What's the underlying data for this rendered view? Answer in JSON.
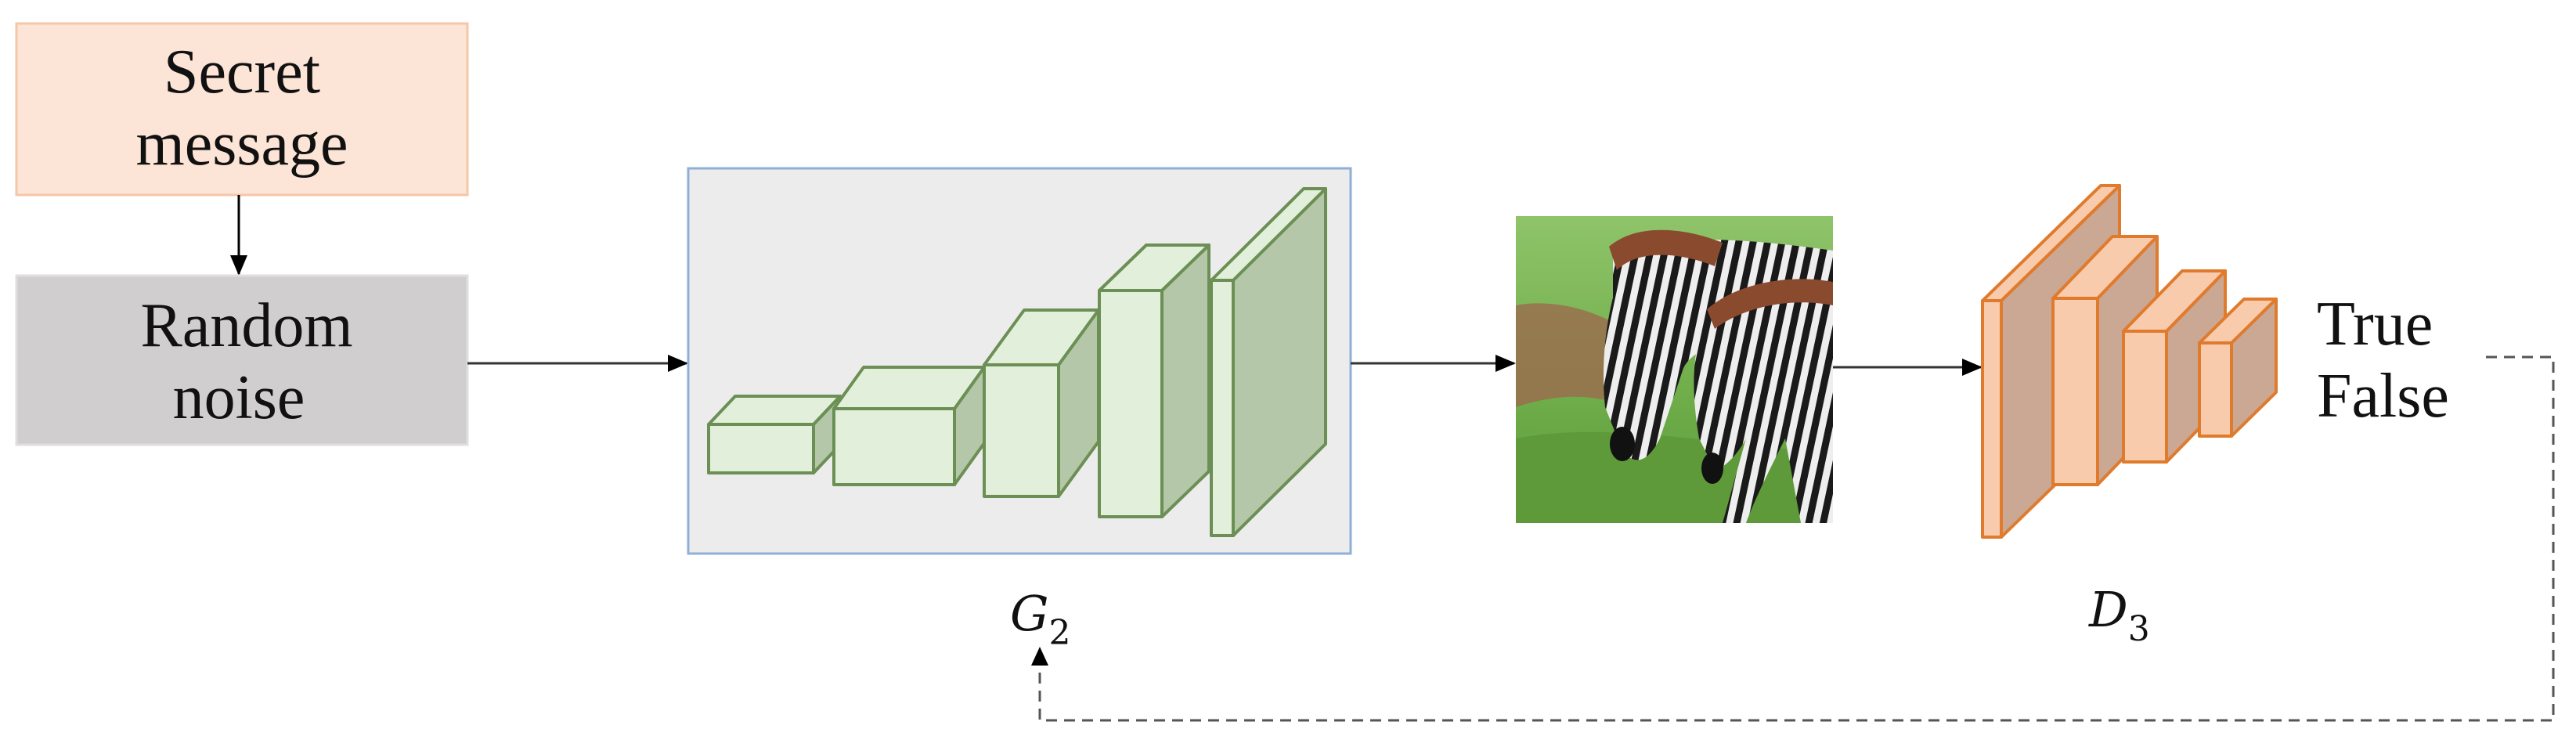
{
  "input": {
    "secret_message": [
      "Secret",
      "message"
    ],
    "random_noise": [
      "Random",
      "noise"
    ]
  },
  "generator": {
    "label": "G",
    "subscript": "2"
  },
  "discriminator": {
    "label": "D",
    "subscript": "3"
  },
  "output": {
    "true_label": "True",
    "false_label": "False"
  },
  "colors": {
    "secret_fill": "#fce4d6",
    "secret_border": "#f4c7a8",
    "noise_fill": "#d0cece",
    "generator_panel": "#ececec",
    "generator_border": "#8fb0d6",
    "generator_block_front": "#e2efda",
    "generator_block_side": "#b4c7a8",
    "generator_block_stroke": "#6b8f54",
    "discriminator_front": "#f8cbad",
    "discriminator_side": "#caa893",
    "discriminator_stroke": "#e07b2e"
  },
  "icons": {
    "generated_image": "zebra-photo"
  }
}
